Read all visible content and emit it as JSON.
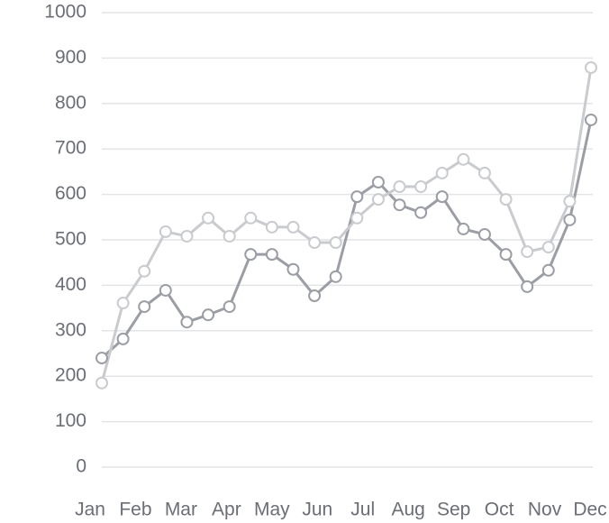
{
  "chart_data": {
    "type": "line",
    "categories": [
      "Jan",
      null,
      "Feb",
      null,
      "Mar",
      null,
      "Apr",
      null,
      "May",
      null,
      "Jun",
      null,
      "Jul",
      null,
      "Aug",
      null,
      "Sep",
      null,
      "Oct",
      null,
      "Nov",
      null,
      "Dec",
      null
    ],
    "series": [
      {
        "color": "#9b9ea4",
        "values": [
          240,
          282,
          353,
          389,
          319,
          335,
          353,
          468,
          468,
          435,
          377,
          419,
          595,
          627,
          577,
          560,
          595,
          524,
          512,
          468,
          397,
          433,
          544,
          764
        ]
      },
      {
        "color": "#c9cbcf",
        "values": [
          185,
          361,
          431,
          518,
          508,
          548,
          508,
          548,
          528,
          528,
          494,
          494,
          548,
          589,
          617,
          617,
          647,
          677,
          647,
          589,
          474,
          484,
          585,
          879
        ]
      }
    ],
    "ylim": [
      0,
      1000
    ],
    "yticks": [
      0,
      100,
      200,
      300,
      400,
      500,
      600,
      700,
      800,
      900,
      1000
    ],
    "grid": true
  }
}
